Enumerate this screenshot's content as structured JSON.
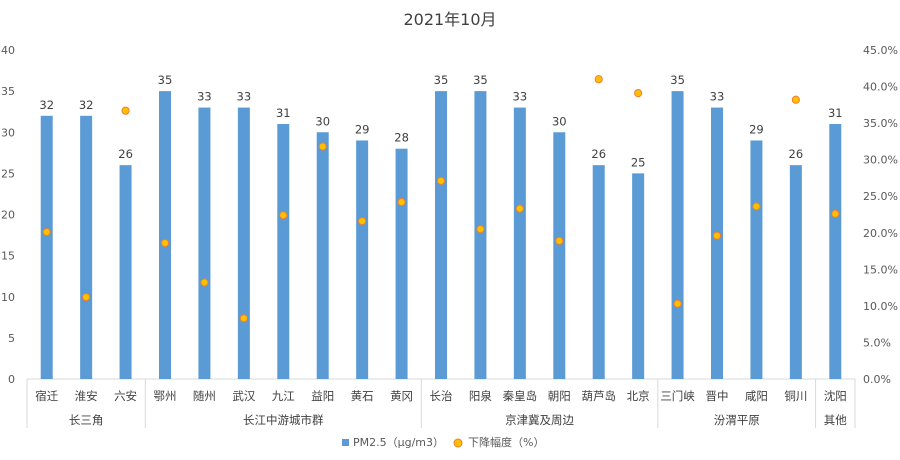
{
  "chart_data": {
    "type": "bar",
    "title": "2021年10月",
    "categories": [
      "宿迁",
      "淮安",
      "六安",
      "鄂州",
      "随州",
      "武汉",
      "九江",
      "益阳",
      "黄石",
      "黄冈",
      "长治",
      "阳泉",
      "秦皇岛",
      "朝阳",
      "葫芦岛",
      "北京",
      "三门峡",
      "晋中",
      "咸阳",
      "铜川",
      "沈阳"
    ],
    "groups": [
      {
        "name": "长三角",
        "count": 3
      },
      {
        "name": "长江中游城市群",
        "count": 7
      },
      {
        "name": "京津冀及周边",
        "count": 6
      },
      {
        "name": "汾渭平原",
        "count": 4
      },
      {
        "name": "其他",
        "count": 1
      }
    ],
    "series": [
      {
        "name": "PM2.5（μg/m3）",
        "type": "bar",
        "axis": "left",
        "color": "#5B9BD5",
        "values": [
          32,
          32,
          26,
          35,
          33,
          33,
          31,
          30,
          29,
          28,
          35,
          35,
          33,
          30,
          26,
          25,
          35,
          33,
          29,
          26,
          31
        ],
        "value_labels": [
          "32",
          "32",
          "26",
          "35",
          "33",
          "33",
          "31",
          "30",
          "29",
          "28",
          "35",
          "35",
          "33",
          "30",
          "26",
          "25",
          "35",
          "33",
          "29",
          "26",
          "31"
        ]
      },
      {
        "name": "下降幅度（%）",
        "type": "scatter",
        "axis": "right",
        "color": "#FFC000",
        "stroke": "#ED7D31",
        "values": [
          20.1,
          11.2,
          36.7,
          18.6,
          13.2,
          8.3,
          22.4,
          31.8,
          21.6,
          24.2,
          27.1,
          20.5,
          23.3,
          18.9,
          41.0,
          39.1,
          10.3,
          19.6,
          23.6,
          38.2,
          22.6
        ]
      }
    ],
    "y_left": {
      "min": 0,
      "max": 40,
      "ticks": [
        "0",
        "5",
        "10",
        "15",
        "20",
        "25",
        "30",
        "35",
        "40"
      ]
    },
    "y_right": {
      "min": 0,
      "max": 45,
      "ticks": [
        "0.0%",
        "5.0%",
        "10.0%",
        "15.0%",
        "20.0%",
        "25.0%",
        "30.0%",
        "35.0%",
        "40.0%",
        "45.0%"
      ]
    },
    "grid": false,
    "legend": "bottom"
  }
}
